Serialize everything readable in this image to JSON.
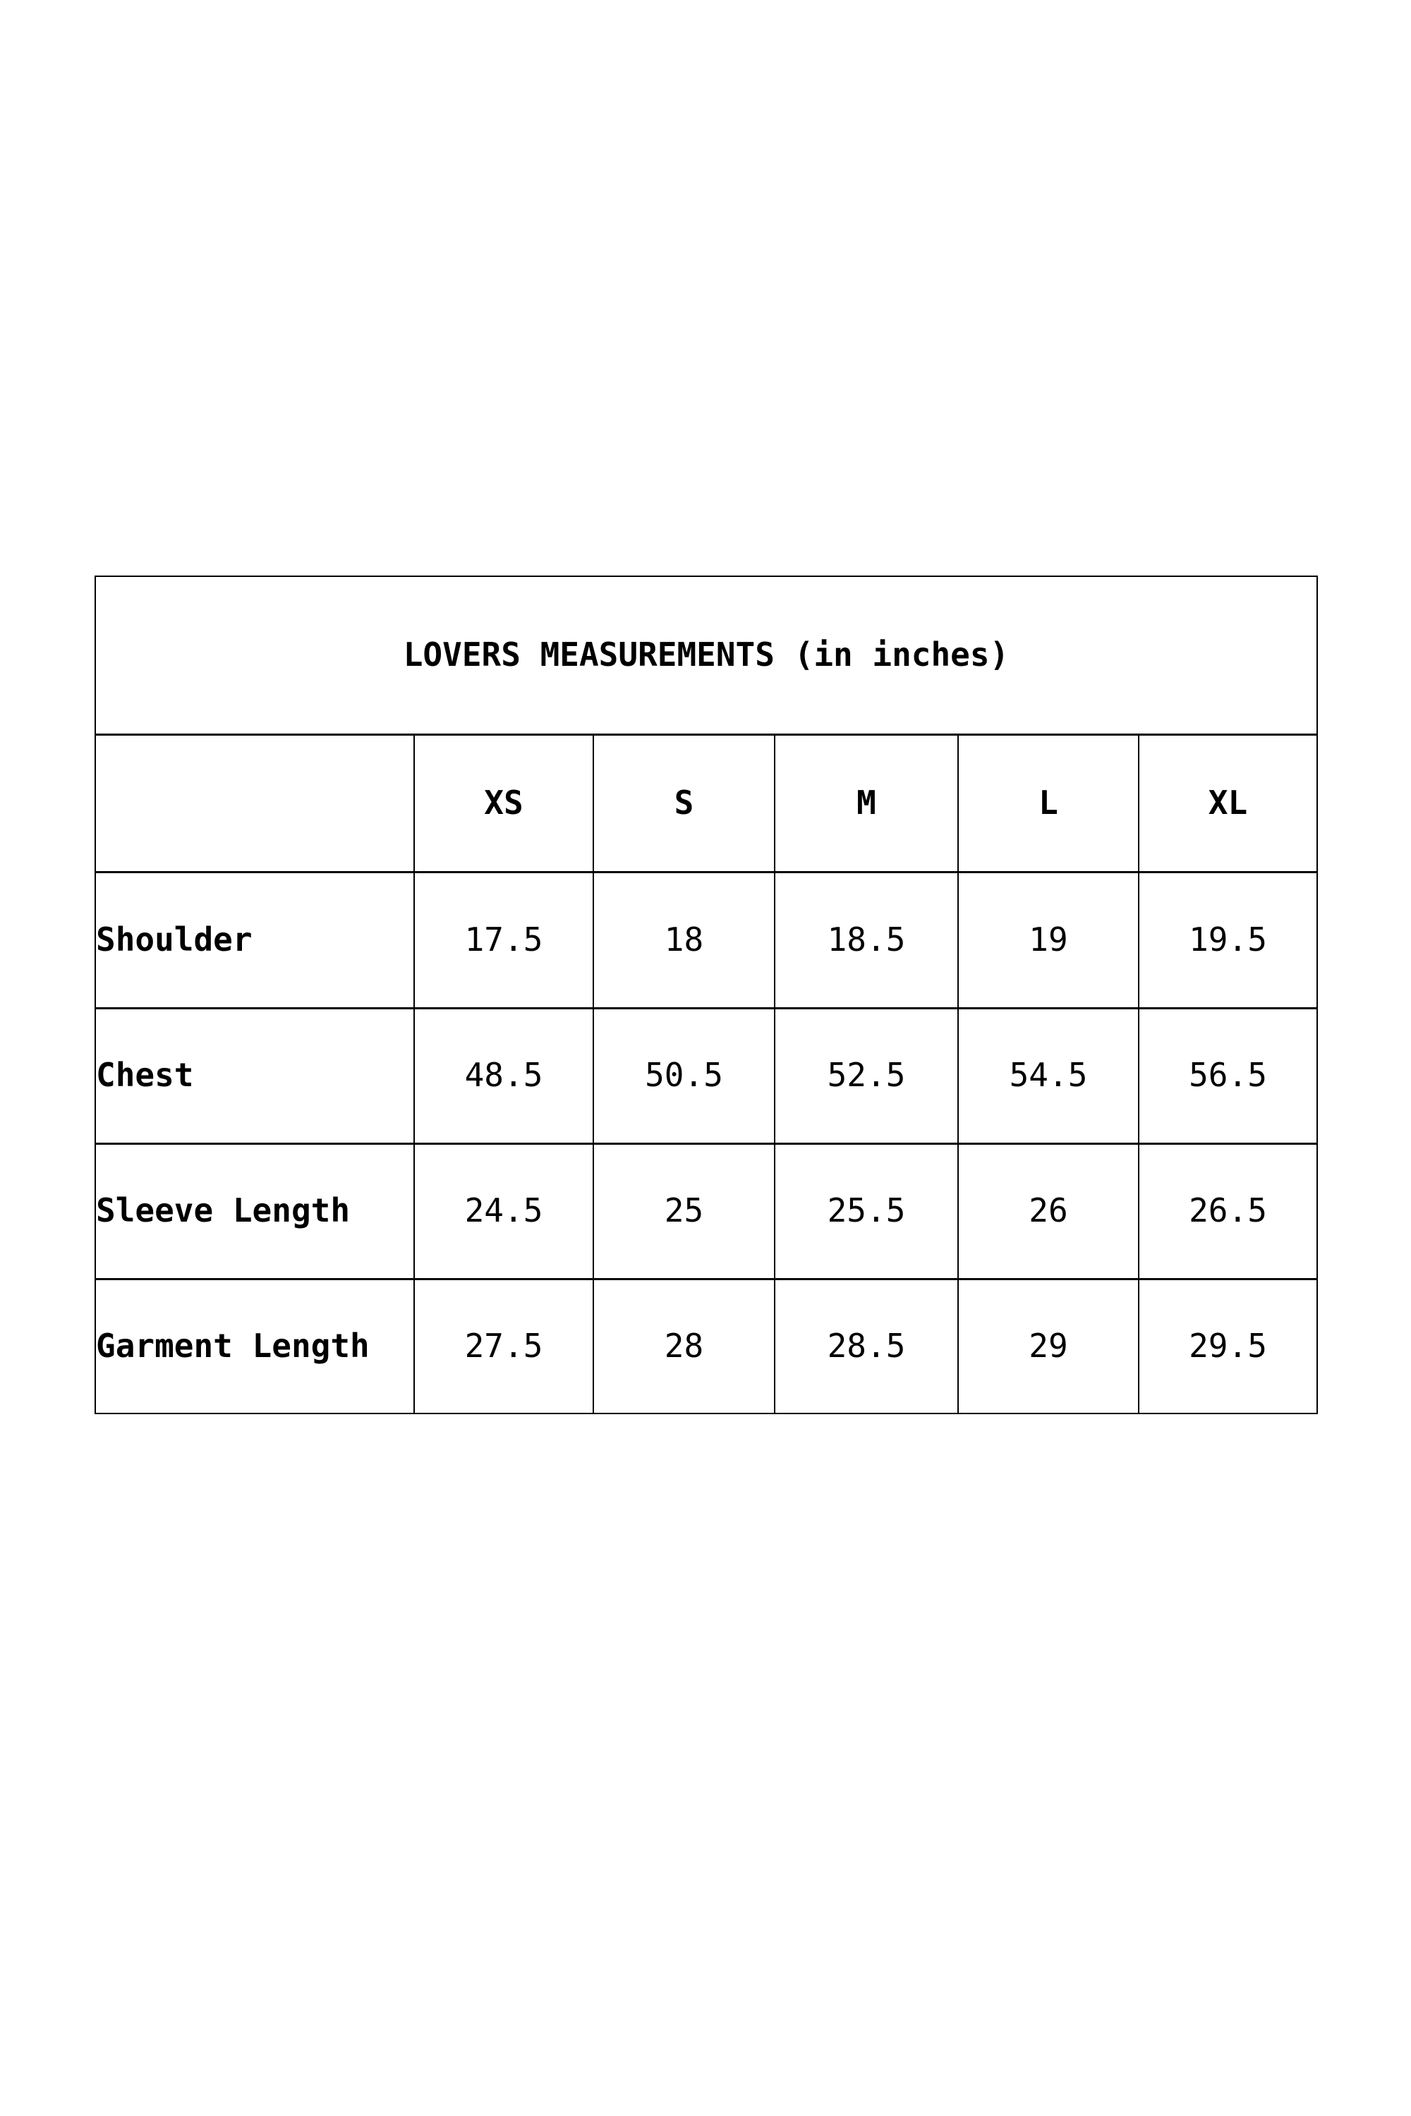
{
  "page": {
    "background_color": "#ffffff",
    "text_color": "#000000",
    "border_color": "#000000"
  },
  "size_chart": {
    "title": "LOVERS MEASUREMENTS (in inches)",
    "size_headers": [
      "XS",
      "S",
      "M",
      "L",
      "XL"
    ],
    "rows": [
      {
        "label": "Shoulder",
        "values": [
          "17.5",
          "18",
          "18.5",
          "19",
          "19.5"
        ]
      },
      {
        "label": "Chest",
        "values": [
          "48.5",
          "50.5",
          "52.5",
          "54.5",
          "56.5"
        ]
      },
      {
        "label": "Sleeve Length",
        "values": [
          "24.5",
          "25",
          "25.5",
          "26",
          "26.5"
        ]
      },
      {
        "label": "Garment Length",
        "values": [
          "27.5",
          "28",
          "28.5",
          "29",
          "29.5"
        ]
      }
    ]
  }
}
